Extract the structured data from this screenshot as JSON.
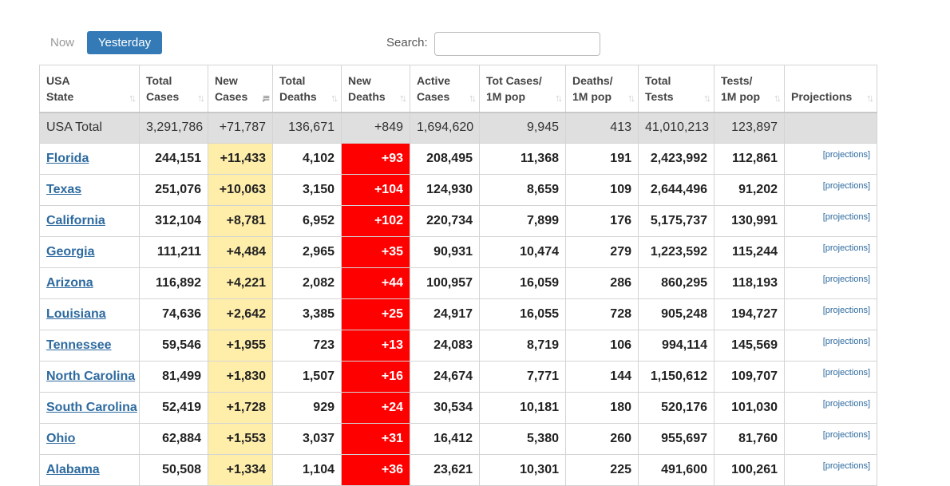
{
  "toolbar": {
    "now_label": "Now",
    "yesterday_label": "Yesterday",
    "search_label": "Search:",
    "search_value": ""
  },
  "colors": {
    "accent": "#337ab7",
    "new_cases_bg": "#ffeeaa",
    "new_deaths_bg": "#ff0000",
    "total_row_bg": "#dfdfdf",
    "link": "#2d6a9f"
  },
  "table": {
    "headers": [
      {
        "line1": "USA",
        "line2": "State"
      },
      {
        "line1": "Total",
        "line2": "Cases"
      },
      {
        "line1": "New",
        "line2": "Cases"
      },
      {
        "line1": "Total",
        "line2": "Deaths"
      },
      {
        "line1": "New",
        "line2": "Deaths"
      },
      {
        "line1": "Active",
        "line2": "Cases"
      },
      {
        "line1": "Tot Cases/",
        "line2": "1M pop"
      },
      {
        "line1": "Deaths/",
        "line2": "1M pop"
      },
      {
        "line1": "Total",
        "line2": "Tests"
      },
      {
        "line1": "Tests/",
        "line2": "1M pop"
      },
      {
        "line1": "",
        "line2": "Projections"
      }
    ],
    "total_row": {
      "state": "USA Total",
      "total_cases": "3,291,786",
      "new_cases": "+71,787",
      "total_deaths": "136,671",
      "new_deaths": "+849",
      "active_cases": "1,694,620",
      "cases_per_1m": "9,945",
      "deaths_per_1m": "413",
      "total_tests": "41,010,213",
      "tests_per_1m": "123,897"
    },
    "rows": [
      {
        "state": "Florida",
        "total_cases": "244,151",
        "new_cases": "+11,433",
        "total_deaths": "4,102",
        "new_deaths": "+93",
        "active_cases": "208,495",
        "cases_per_1m": "11,368",
        "deaths_per_1m": "191",
        "total_tests": "2,423,992",
        "tests_per_1m": "112,861",
        "projections": "[projections]"
      },
      {
        "state": "Texas",
        "total_cases": "251,076",
        "new_cases": "+10,063",
        "total_deaths": "3,150",
        "new_deaths": "+104",
        "active_cases": "124,930",
        "cases_per_1m": "8,659",
        "deaths_per_1m": "109",
        "total_tests": "2,644,496",
        "tests_per_1m": "91,202",
        "projections": "[projections]"
      },
      {
        "state": "California",
        "total_cases": "312,104",
        "new_cases": "+8,781",
        "total_deaths": "6,952",
        "new_deaths": "+102",
        "active_cases": "220,734",
        "cases_per_1m": "7,899",
        "deaths_per_1m": "176",
        "total_tests": "5,175,737",
        "tests_per_1m": "130,991",
        "projections": "[projections]"
      },
      {
        "state": "Georgia",
        "total_cases": "111,211",
        "new_cases": "+4,484",
        "total_deaths": "2,965",
        "new_deaths": "+35",
        "active_cases": "90,931",
        "cases_per_1m": "10,474",
        "deaths_per_1m": "279",
        "total_tests": "1,223,592",
        "tests_per_1m": "115,244",
        "projections": "[projections]"
      },
      {
        "state": "Arizona",
        "total_cases": "116,892",
        "new_cases": "+4,221",
        "total_deaths": "2,082",
        "new_deaths": "+44",
        "active_cases": "100,957",
        "cases_per_1m": "16,059",
        "deaths_per_1m": "286",
        "total_tests": "860,295",
        "tests_per_1m": "118,193",
        "projections": "[projections]"
      },
      {
        "state": "Louisiana",
        "total_cases": "74,636",
        "new_cases": "+2,642",
        "total_deaths": "3,385",
        "new_deaths": "+25",
        "active_cases": "24,917",
        "cases_per_1m": "16,055",
        "deaths_per_1m": "728",
        "total_tests": "905,248",
        "tests_per_1m": "194,727",
        "projections": "[projections]"
      },
      {
        "state": "Tennessee",
        "total_cases": "59,546",
        "new_cases": "+1,955",
        "total_deaths": "723",
        "new_deaths": "+13",
        "active_cases": "24,083",
        "cases_per_1m": "8,719",
        "deaths_per_1m": "106",
        "total_tests": "994,114",
        "tests_per_1m": "145,569",
        "projections": "[projections]"
      },
      {
        "state": "North Carolina",
        "total_cases": "81,499",
        "new_cases": "+1,830",
        "total_deaths": "1,507",
        "new_deaths": "+16",
        "active_cases": "24,674",
        "cases_per_1m": "7,771",
        "deaths_per_1m": "144",
        "total_tests": "1,150,612",
        "tests_per_1m": "109,707",
        "projections": "[projections]"
      },
      {
        "state": "South Carolina",
        "total_cases": "52,419",
        "new_cases": "+1,728",
        "total_deaths": "929",
        "new_deaths": "+24",
        "active_cases": "30,534",
        "cases_per_1m": "10,181",
        "deaths_per_1m": "180",
        "total_tests": "520,176",
        "tests_per_1m": "101,030",
        "projections": "[projections]"
      },
      {
        "state": "Ohio",
        "total_cases": "62,884",
        "new_cases": "+1,553",
        "total_deaths": "3,037",
        "new_deaths": "+31",
        "active_cases": "16,412",
        "cases_per_1m": "5,380",
        "deaths_per_1m": "260",
        "total_tests": "955,697",
        "tests_per_1m": "81,760",
        "projections": "[projections]"
      },
      {
        "state": "Alabama",
        "total_cases": "50,508",
        "new_cases": "+1,334",
        "total_deaths": "1,104",
        "new_deaths": "+36",
        "active_cases": "23,621",
        "cases_per_1m": "10,301",
        "deaths_per_1m": "225",
        "total_tests": "491,600",
        "tests_per_1m": "100,261",
        "projections": "[projections]"
      }
    ]
  }
}
